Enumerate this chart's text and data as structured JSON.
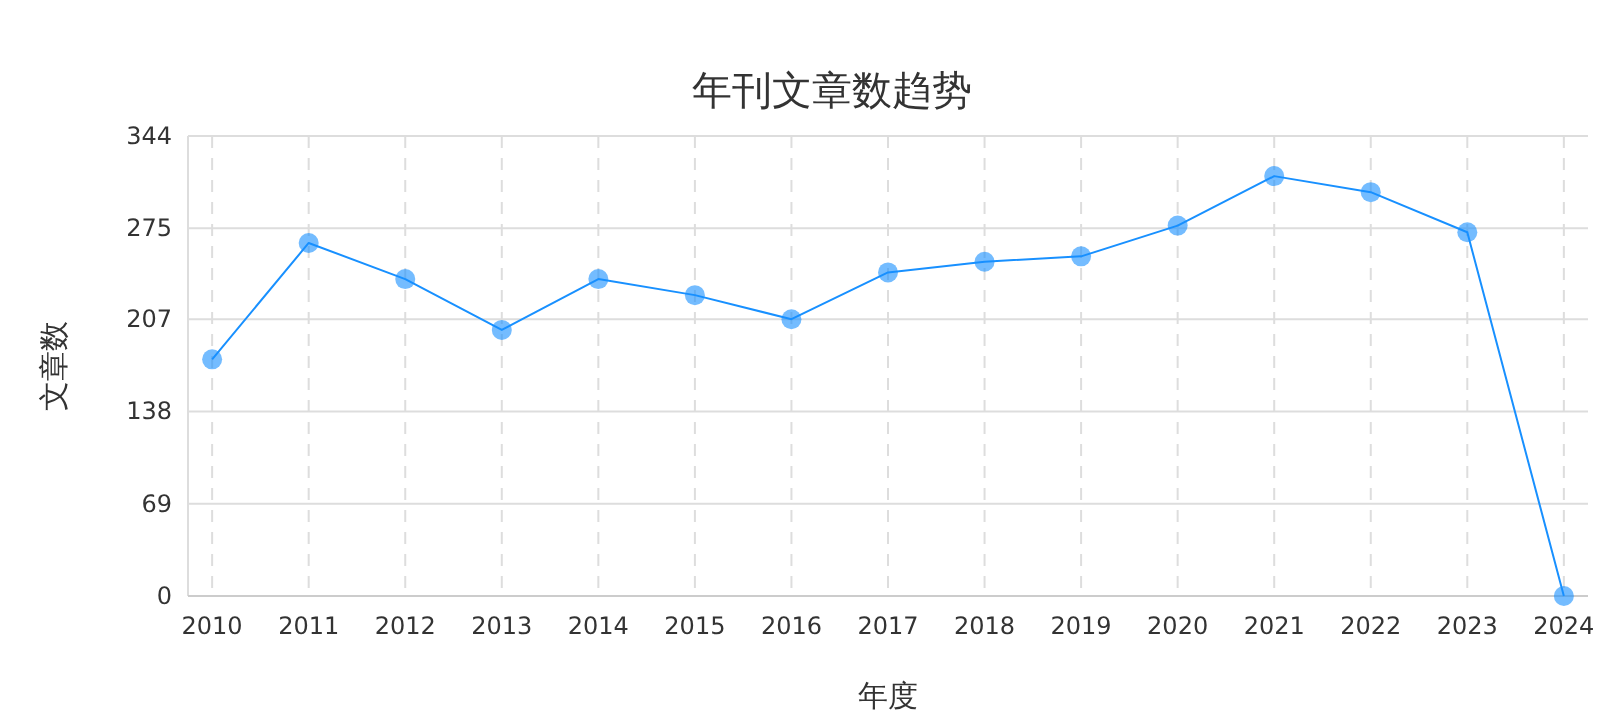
{
  "chart_data": {
    "type": "line",
    "title": "年刊文章数趋势",
    "xlabel": "年度",
    "ylabel": "文章数",
    "categories": [
      "2010",
      "2011",
      "2012",
      "2013",
      "2014",
      "2015",
      "2016",
      "2017",
      "2018",
      "2019",
      "2020",
      "2021",
      "2022",
      "2023",
      "2024"
    ],
    "series": [
      {
        "color": "#1890ff",
        "values": [
          177,
          264,
          237,
          199,
          237,
          225,
          207,
          242,
          250,
          254,
          277,
          314,
          302,
          272,
          0
        ]
      }
    ],
    "ylim": [
      0,
      344
    ],
    "yticks": [
      0,
      69,
      138,
      207,
      275,
      344
    ],
    "grid": true,
    "marker": "circle",
    "line_style": "solid"
  }
}
